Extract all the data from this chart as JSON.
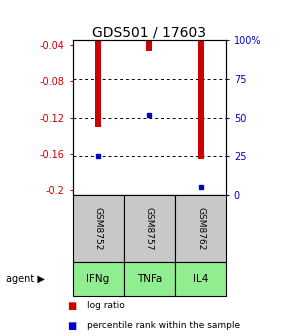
{
  "title": "GDS501 / 17603",
  "samples": [
    "GSM8752",
    "GSM8757",
    "GSM8762"
  ],
  "agents": [
    "IFNg",
    "TNFa",
    "IL4"
  ],
  "log_ratios": [
    -0.13,
    -0.047,
    -0.165
  ],
  "percentile_ranks": [
    25,
    52,
    5
  ],
  "ylim": [
    -0.205,
    -0.035
  ],
  "yticks": [
    -0.04,
    -0.08,
    -0.12,
    -0.16,
    -0.2
  ],
  "ytick_labels": [
    "-0.04",
    "-0.08",
    "-0.12",
    "-0.16",
    "-0.2"
  ],
  "right_yticks": [
    0,
    25,
    50,
    75,
    100
  ],
  "right_ytick_labels": [
    "0",
    "25",
    "50",
    "75",
    "100%"
  ],
  "bar_color": "#cc0000",
  "dot_color": "#0000cc",
  "sample_bg": "#c8c8c8",
  "agent_bg": "#90ee90",
  "title_fontsize": 10,
  "left_label_color": "#cc0000",
  "right_label_color": "#0000cc",
  "bar_width": 0.12,
  "dot_size": 3.5
}
